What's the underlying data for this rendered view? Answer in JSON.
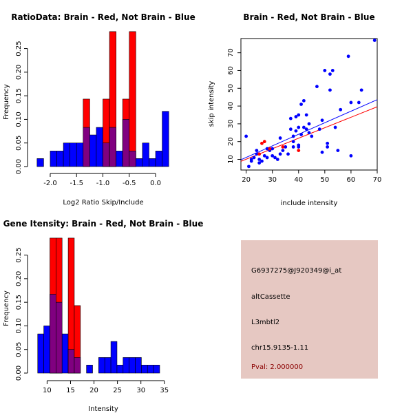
{
  "colors": {
    "red": "#ff0000",
    "blue": "#0000ff",
    "overlap": "#800080",
    "info_bg": "#e6c8c2",
    "pval": "#8b0000"
  },
  "chart_data": [
    {
      "id": "ratio",
      "type": "histogram",
      "title": "RatioData: Brain - Red, Not Brain - Blue",
      "xlabel": "Log2 Ratio Skip/Include",
      "ylabel": "Frequency",
      "xlim": [
        -2.3,
        0.3
      ],
      "ylim": [
        0,
        0.28
      ],
      "xticks": [
        -2.0,
        -1.5,
        -1.0,
        -0.5,
        0.0
      ],
      "xtick_labels": [
        "-2.0",
        "-1.5",
        "-1.0",
        "-0.5",
        "0.0"
      ],
      "yticks": [
        0.0,
        0.05,
        0.1,
        0.15,
        0.2,
        0.25
      ],
      "ytick_labels": [
        "0.00",
        "0.05",
        "0.10",
        "0.15",
        "0.20",
        "0.25"
      ],
      "bin_start": -2.25,
      "bin_width": 0.125,
      "series": [
        {
          "name": "Not Brain",
          "color": "blue",
          "values": [
            0.017,
            0.0,
            0.033,
            0.033,
            0.05,
            0.05,
            0.05,
            0.083,
            0.067,
            0.083,
            0.05,
            0.083,
            0.033,
            0.1,
            0.033,
            0.017,
            0.05,
            0.017,
            0.033,
            0.117
          ]
        },
        {
          "name": "Brain",
          "color": "red",
          "values": [
            0,
            0,
            0,
            0,
            0,
            0,
            0,
            0.143,
            0,
            0,
            0.143,
            0.286,
            0,
            0.143,
            0.286,
            0,
            0,
            0,
            0,
            0
          ]
        }
      ]
    },
    {
      "id": "scatter",
      "type": "scatter",
      "title": "Brain - Red, Not Brain - Blue",
      "xlabel": "include intensity",
      "ylabel": "skip intensity",
      "xlim": [
        18,
        70
      ],
      "ylim": [
        4,
        78
      ],
      "xticks": [
        20,
        30,
        40,
        50,
        60,
        70
      ],
      "yticks": [
        10,
        20,
        30,
        40,
        50,
        60,
        70
      ],
      "series": [
        {
          "name": "Not Brain",
          "color": "blue",
          "points": [
            [
              20,
              23
            ],
            [
              21,
              6
            ],
            [
              22,
              9
            ],
            [
              22,
              10
            ],
            [
              23,
              11
            ],
            [
              24,
              13
            ],
            [
              24,
              15
            ],
            [
              25,
              10
            ],
            [
              25,
              8
            ],
            [
              26,
              9
            ],
            [
              27,
              12
            ],
            [
              28,
              16
            ],
            [
              28,
              11
            ],
            [
              29,
              15
            ],
            [
              30,
              12
            ],
            [
              30,
              16
            ],
            [
              31,
              11
            ],
            [
              32,
              10
            ],
            [
              33,
              13
            ],
            [
              33,
              22
            ],
            [
              34,
              15
            ],
            [
              35,
              17
            ],
            [
              36,
              13
            ],
            [
              37,
              27
            ],
            [
              37,
              33
            ],
            [
              38,
              17
            ],
            [
              38,
              23
            ],
            [
              38,
              20
            ],
            [
              39,
              34
            ],
            [
              39,
              26
            ],
            [
              40,
              35
            ],
            [
              40,
              18
            ],
            [
              40,
              17
            ],
            [
              40,
              28
            ],
            [
              41,
              41
            ],
            [
              41,
              24
            ],
            [
              42,
              43
            ],
            [
              42,
              28
            ],
            [
              43,
              27
            ],
            [
              43,
              35
            ],
            [
              44,
              25
            ],
            [
              44,
              30
            ],
            [
              45,
              23
            ],
            [
              47,
              51
            ],
            [
              48,
              27
            ],
            [
              49,
              32
            ],
            [
              49,
              14
            ],
            [
              50,
              60
            ],
            [
              51,
              17
            ],
            [
              51,
              19
            ],
            [
              52,
              49
            ],
            [
              52,
              58
            ],
            [
              53,
              60
            ],
            [
              54,
              28
            ],
            [
              55,
              15
            ],
            [
              56,
              38
            ],
            [
              59,
              68
            ],
            [
              60,
              42
            ],
            [
              60,
              12
            ],
            [
              63,
              42
            ],
            [
              64,
              49
            ],
            [
              69,
              77
            ]
          ]
        },
        {
          "name": "Brain",
          "color": "red",
          "points": [
            [
              25,
              13
            ],
            [
              26,
              19
            ],
            [
              27,
              20
            ],
            [
              29,
              16
            ],
            [
              34,
              17
            ],
            [
              40,
              15
            ]
          ]
        }
      ],
      "fits": [
        {
          "series": "Not Brain",
          "color": "blue",
          "x": [
            18,
            70
          ],
          "y": [
            9.8,
            43.6
          ]
        },
        {
          "series": "Brain",
          "color": "red",
          "x": [
            18,
            70
          ],
          "y": [
            8.9,
            39.6
          ]
        }
      ]
    },
    {
      "id": "gene",
      "type": "histogram",
      "title": "Gene Itensity: Brain - Red, Not Brain - Blue",
      "xlabel": "Intensity",
      "ylabel": "Frequency",
      "xlim": [
        7.3,
        36.5
      ],
      "ylim": [
        0,
        0.28
      ],
      "xticks": [
        10,
        15,
        20,
        25,
        30,
        35
      ],
      "xtick_labels": [
        "10",
        "15",
        "20",
        "25",
        "30",
        "35"
      ],
      "yticks": [
        0.0,
        0.05,
        0.1,
        0.15,
        0.2,
        0.25
      ],
      "ytick_labels": [
        "0.00",
        "0.05",
        "0.10",
        "0.15",
        "0.20",
        "0.25"
      ],
      "bin_start": 8,
      "bin_width": 1.3,
      "series": [
        {
          "name": "Not Brain",
          "color": "blue",
          "values": [
            0.083,
            0.1,
            0.167,
            0.15,
            0.083,
            0.05,
            0.033,
            0.0,
            0.017,
            0.0,
            0.033,
            0.033,
            0.067,
            0.017,
            0.033,
            0.033,
            0.033,
            0.017,
            0.017,
            0.017
          ]
        },
        {
          "name": "Brain",
          "color": "red",
          "values": [
            0,
            0,
            0.286,
            0.286,
            0,
            0.286,
            0.143,
            0,
            0,
            0,
            0,
            0,
            0,
            0,
            0,
            0,
            0,
            0,
            0,
            0
          ]
        }
      ]
    }
  ],
  "info": {
    "probe": "G6937275@J920349@i_at",
    "event": "altCassette",
    "gene": "L3mbtl2",
    "location": "chr15.9135-1.11",
    "pval": "Pval: 2.000000"
  }
}
